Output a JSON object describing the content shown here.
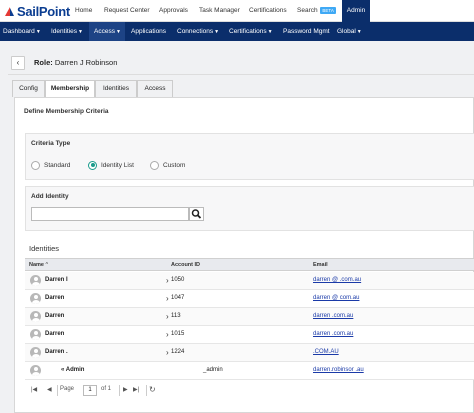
{
  "brand": {
    "name": "SailPoint"
  },
  "topnav": {
    "items": [
      "Home",
      "Request Center",
      "Approvals",
      "Task Manager",
      "Certifications",
      "Search",
      "Admin"
    ],
    "search_badge": "BETA",
    "active": "Admin"
  },
  "subnav": {
    "items": [
      "Dashboard",
      "Identities",
      "Access",
      "Applications",
      "Connections",
      "Certifications",
      "Password Mgmt",
      "Global"
    ],
    "active": "Access"
  },
  "role": {
    "label": "Role:",
    "name": "Darren J Robinson"
  },
  "tabs": {
    "items": [
      "Config",
      "Membership",
      "Identities",
      "Access"
    ],
    "active": "Membership"
  },
  "membership": {
    "title": "Define Membership Criteria",
    "criteria": {
      "title": "Criteria Type",
      "options": [
        "Standard",
        "Identity List",
        "Custom"
      ],
      "selected": "Identity List"
    },
    "add_identity": {
      "title": "Add Identity",
      "input_value": "",
      "input_placeholder": ""
    }
  },
  "identities": {
    "title": "Identities",
    "columns": {
      "name": "Name",
      "account_id": "Account ID",
      "email": "Email"
    },
    "sort_indicator": "^",
    "rows": [
      {
        "name": "Darren I",
        "account_id": "1050",
        "email": "darren            @          .com.au"
      },
      {
        "name": "Darren",
        "account_id": "1047",
        "email": "darren           @           com.au"
      },
      {
        "name": "Darren",
        "account_id": "113",
        "email": "darren                       .com.au"
      },
      {
        "name": "Darren",
        "account_id": "1015",
        "email": "darren                       .com.au"
      },
      {
        "name": "Darren .",
        "account_id": "1224",
        "email": "                              .COM.AU"
      },
      {
        "name": "« Admin",
        "account_id": "_admin",
        "email": "darren.robinsor            .au"
      }
    ]
  },
  "pager": {
    "page_label": "Page",
    "page": "1",
    "of_label": "of 1"
  },
  "colors": {
    "nav_bg": "#0b2e6b",
    "accent": "#1b9c8c",
    "link": "#1a3aa8"
  }
}
